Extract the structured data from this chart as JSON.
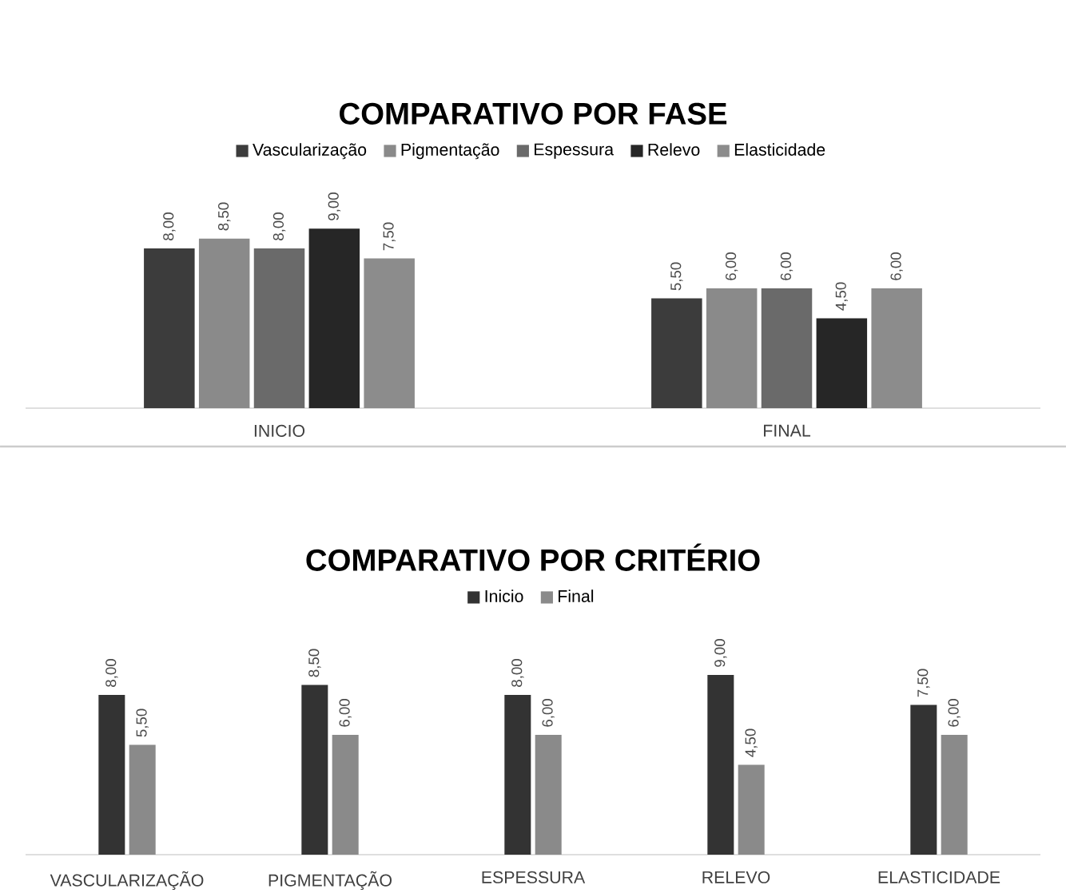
{
  "chart_data": [
    {
      "type": "bar",
      "title": "COMPARATIVO  POR FASE",
      "categories": [
        "INICIO",
        "FINAL"
      ],
      "legend": "top",
      "series": [
        {
          "name": "Vascularização",
          "color": "#3c3c3c",
          "values": [
            8,
            5.5
          ],
          "value_labels": [
            "8,00",
            "5,50"
          ]
        },
        {
          "name": "Pigmentação",
          "color": "#8a8a8a",
          "values": [
            8.5,
            6
          ],
          "value_labels": [
            "8,50",
            "6,00"
          ]
        },
        {
          "name": "Espessura",
          "color": "#6a6a6a",
          "values": [
            8,
            6
          ],
          "value_labels": [
            "8,00",
            "6,00"
          ]
        },
        {
          "name": "Relevo",
          "color": "#262626",
          "values": [
            9,
            4.5
          ],
          "value_labels": [
            "9,00",
            "4,50"
          ]
        },
        {
          "name": "Elasticidade",
          "color": "#8c8c8c",
          "values": [
            7.5,
            6
          ],
          "value_labels": [
            "7,50",
            "6,00"
          ]
        }
      ]
    },
    {
      "type": "bar",
      "title": "COMPARATIVO  POR CRITÉRIO",
      "categories": [
        "VASCULARIZAÇÃO",
        "PIGMENTAÇÃO",
        "ESPESSURA",
        "RELEVO",
        "ELASTICIDADE"
      ],
      "legend": "top",
      "series": [
        {
          "name": "Inicio",
          "color": "#333333",
          "values": [
            8,
            8.5,
            8,
            9,
            7.5
          ],
          "value_labels": [
            "8,00",
            "8,50",
            "8,00",
            "9,00",
            "7,50"
          ]
        },
        {
          "name": "Final",
          "color": "#8a8a8a",
          "values": [
            5.5,
            6,
            6,
            4.5,
            6
          ],
          "value_labels": [
            "5,50",
            "6,00",
            "6,00",
            "4,50",
            "6,00"
          ]
        }
      ]
    }
  ]
}
